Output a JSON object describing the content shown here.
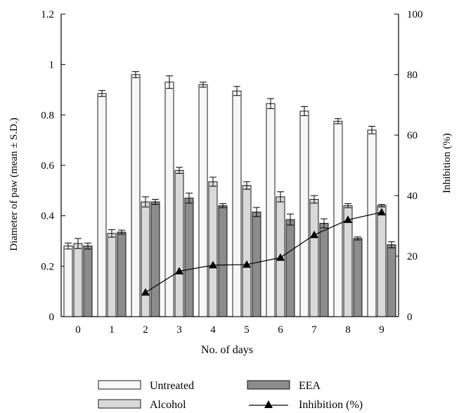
{
  "chart_data": {
    "type": "bar",
    "categories": [
      "0",
      "1",
      "2",
      "3",
      "4",
      "5",
      "6",
      "7",
      "8",
      "9"
    ],
    "xlabel": "No. of days",
    "ylabel": "Diameter of paw (mean ± S.D.)",
    "y2label": "Inhibition (%)",
    "ylim": [
      0,
      1.2
    ],
    "y2lim": [
      0,
      100
    ],
    "yticks": [
      "0",
      "0.2",
      "0.4",
      "0.6",
      "0.8",
      "1",
      "1.2"
    ],
    "y2ticks": [
      "0",
      "20",
      "40",
      "60",
      "80",
      "100"
    ],
    "grid": false,
    "legend_position": "bottom",
    "series": [
      {
        "name": "Untreated",
        "kind": "bar",
        "color": "#f7f7f7",
        "values": [
          0.28,
          0.885,
          0.96,
          0.93,
          0.92,
          0.895,
          0.845,
          0.815,
          0.775,
          0.74
        ],
        "errors": [
          0.012,
          0.012,
          0.012,
          0.025,
          0.01,
          0.018,
          0.02,
          0.018,
          0.01,
          0.015
        ]
      },
      {
        "name": "Alcohol",
        "kind": "bar",
        "color": "#d9d9d9",
        "values": [
          0.29,
          0.33,
          0.455,
          0.58,
          0.535,
          0.52,
          0.475,
          0.465,
          0.44,
          0.44
        ],
        "errors": [
          0.02,
          0.015,
          0.02,
          0.012,
          0.018,
          0.015,
          0.02,
          0.015,
          0.008,
          0.005
        ]
      },
      {
        "name": "EEA",
        "kind": "bar",
        "color": "#8c8c8c",
        "values": [
          0.28,
          0.335,
          0.455,
          0.47,
          0.44,
          0.415,
          0.385,
          0.37,
          0.31,
          0.285
        ],
        "errors": [
          0.012,
          0.008,
          0.01,
          0.02,
          0.008,
          0.018,
          0.022,
          0.018,
          0.006,
          0.012
        ]
      },
      {
        "name": "Inhibition (%)",
        "kind": "line",
        "axis": "right",
        "color": "#000000",
        "x": [
          "2",
          "3",
          "4",
          "5",
          "6",
          "7",
          "8",
          "9"
        ],
        "values": [
          8,
          15,
          17,
          17.2,
          19.5,
          27,
          32,
          34.5
        ]
      }
    ]
  }
}
